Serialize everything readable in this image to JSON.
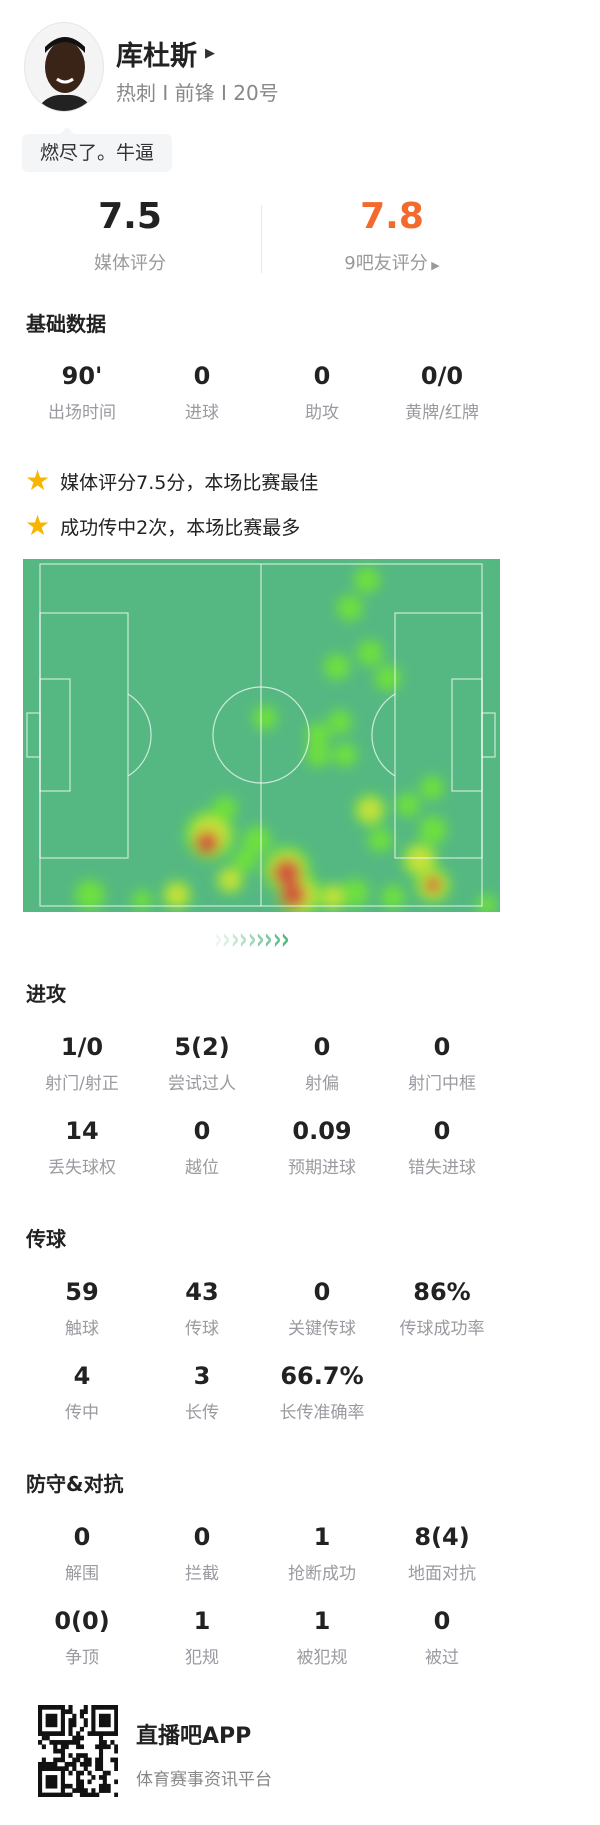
{
  "player": {
    "name": "库杜斯",
    "subtitle": "热刺 I 前锋 I 20号",
    "comment": "燃尽了。牛逼"
  },
  "ratings": {
    "media": {
      "value": "7.5",
      "label": "媒体评分"
    },
    "fans": {
      "value": "7.8",
      "label": "9吧友评分",
      "color": "#f26a2d"
    }
  },
  "basic": {
    "title": "基础数据",
    "stats": [
      {
        "v": "90'",
        "l": "出场时间"
      },
      {
        "v": "0",
        "l": "进球"
      },
      {
        "v": "0",
        "l": "助攻"
      },
      {
        "v": "0/0",
        "l": "黄牌/红牌"
      }
    ]
  },
  "highlights": [
    "媒体评分7.5分，本场比赛最佳",
    "成功传中2次，本场比赛最多"
  ],
  "attack": {
    "title": "进攻",
    "stats": [
      {
        "v": "1/0",
        "l": "射门/射正"
      },
      {
        "v": "5(2)",
        "l": "尝试过人"
      },
      {
        "v": "0",
        "l": "射偏"
      },
      {
        "v": "0",
        "l": "射门中框"
      },
      {
        "v": "14",
        "l": "丢失球权"
      },
      {
        "v": "0",
        "l": "越位"
      },
      {
        "v": "0.09",
        "l": "预期进球"
      },
      {
        "v": "0",
        "l": "错失进球"
      }
    ]
  },
  "passing": {
    "title": "传球",
    "stats": [
      {
        "v": "59",
        "l": "触球"
      },
      {
        "v": "43",
        "l": "传球"
      },
      {
        "v": "0",
        "l": "关键传球"
      },
      {
        "v": "86%",
        "l": "传球成功率"
      },
      {
        "v": "4",
        "l": "传中"
      },
      {
        "v": "3",
        "l": "长传"
      },
      {
        "v": "66.7%",
        "l": "长传准确率"
      }
    ]
  },
  "defense": {
    "title": "防守&对抗",
    "stats": [
      {
        "v": "0",
        "l": "解围"
      },
      {
        "v": "0",
        "l": "拦截"
      },
      {
        "v": "1",
        "l": "抢断成功"
      },
      {
        "v": "8(4)",
        "l": "地面对抗"
      },
      {
        "v": "0(0)",
        "l": "争顶"
      },
      {
        "v": "1",
        "l": "犯规"
      },
      {
        "v": "1",
        "l": "被犯规"
      },
      {
        "v": "0",
        "l": "被过"
      }
    ]
  },
  "footer": {
    "app": "直播吧APP",
    "slogan": "体育赛事资讯平台"
  },
  "colors": {
    "pitch": "#55b882",
    "accent": "#f26a2d",
    "star": "#f7b500"
  }
}
